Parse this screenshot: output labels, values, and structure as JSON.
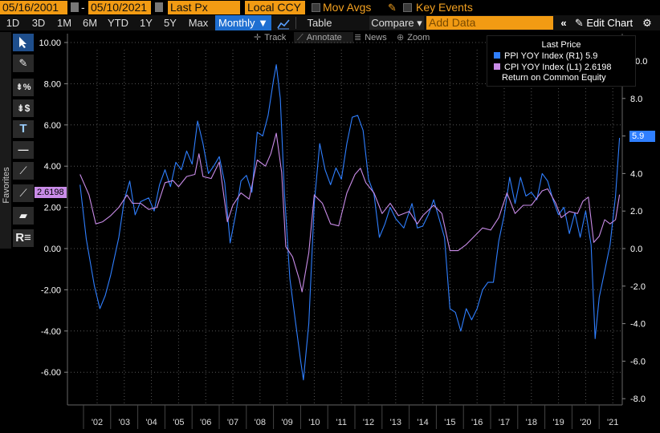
{
  "toolbar": {
    "start_date": "05/16/2001",
    "end_date": "05/10/2021",
    "price_field": "Last Px",
    "currency": "Local CCY",
    "mov_avgs": "Mov Avgs",
    "key_events": "Key Events"
  },
  "ranges": [
    "1D",
    "3D",
    "1M",
    "6M",
    "YTD",
    "1Y",
    "5Y",
    "Max"
  ],
  "frequency": "Monthly ▼",
  "table_label": "Table",
  "compare_label": "Compare ▾",
  "add_data_placeholder": "Add Data",
  "edit_chart": "Edit Chart",
  "sub_toolbar": [
    "Track",
    "Annotate",
    "News",
    "Zoom"
  ],
  "favorites_label": "Favorites",
  "legend": {
    "header": "Last Price",
    "ppi": "PPI YOY Index  (R1) 5.9",
    "cpi": "CPI YOY Index  (L1) 2.6198",
    "extra": "Return on Common Equity"
  },
  "tags": {
    "ppi": "5.9",
    "cpi": "2.6198"
  },
  "colors": {
    "ppi": "#2f7fff",
    "cpi": "#c98ce8",
    "accent": "#f29b13",
    "selected": "#1f6fd1"
  },
  "chart_data": {
    "type": "line",
    "x_ticks": [
      "'02",
      "'03",
      "'04",
      "'05",
      "'06",
      "'07",
      "'08",
      "'09",
      "'10",
      "'11",
      "'12",
      "'13",
      "'14",
      "'15",
      "'16",
      "'17",
      "'18",
      "'19",
      "'20",
      "'21"
    ],
    "left_axis": {
      "ticks": [
        "10.00",
        "8.00",
        "6.00",
        "4.00",
        "2.00",
        "0.00",
        "-2.00",
        "-4.00",
        "-6.00"
      ],
      "range": [
        -7.5,
        10.5
      ]
    },
    "right_axis": {
      "ticks": [
        "10.0",
        "8.0",
        "6.0",
        "4.0",
        "2.0",
        "0.0",
        "-2.0",
        "-4.0",
        "-6.0",
        "-8.0"
      ],
      "range": [
        -8.5,
        10.5
      ]
    },
    "series": [
      {
        "name": "PPI YOY Index",
        "axis": "right",
        "color": "#2f7fff",
        "points": [
          [
            2001.37,
            3.4
          ],
          [
            2001.6,
            0.5
          ],
          [
            2001.9,
            -2.0
          ],
          [
            2002.1,
            -3.2
          ],
          [
            2002.3,
            -2.5
          ],
          [
            2002.5,
            -1.4
          ],
          [
            2002.8,
            0.6
          ],
          [
            2003.0,
            2.6
          ],
          [
            2003.2,
            3.6
          ],
          [
            2003.4,
            1.8
          ],
          [
            2003.6,
            2.5
          ],
          [
            2003.9,
            2.7
          ],
          [
            2004.1,
            2.0
          ],
          [
            2004.3,
            3.4
          ],
          [
            2004.5,
            4.2
          ],
          [
            2004.7,
            3.3
          ],
          [
            2004.9,
            4.6
          ],
          [
            2005.1,
            4.2
          ],
          [
            2005.3,
            5.2
          ],
          [
            2005.5,
            4.5
          ],
          [
            2005.7,
            6.8
          ],
          [
            2005.9,
            5.6
          ],
          [
            2006.1,
            4.0
          ],
          [
            2006.3,
            4.4
          ],
          [
            2006.5,
            4.9
          ],
          [
            2006.7,
            3.5
          ],
          [
            2006.9,
            0.3
          ],
          [
            2007.1,
            1.8
          ],
          [
            2007.3,
            3.6
          ],
          [
            2007.5,
            3.9
          ],
          [
            2007.7,
            3.0
          ],
          [
            2007.9,
            6.2
          ],
          [
            2008.1,
            6.0
          ],
          [
            2008.3,
            7.1
          ],
          [
            2008.5,
            9.0
          ],
          [
            2008.6,
            9.8
          ],
          [
            2008.75,
            8.0
          ],
          [
            2008.9,
            3.0
          ],
          [
            2009.1,
            -1.6
          ],
          [
            2009.3,
            -3.8
          ],
          [
            2009.5,
            -6.0
          ],
          [
            2009.6,
            -7.0
          ],
          [
            2009.8,
            -4.0
          ],
          [
            2010.0,
            2.4
          ],
          [
            2010.2,
            5.6
          ],
          [
            2010.4,
            4.2
          ],
          [
            2010.6,
            3.4
          ],
          [
            2010.8,
            4.3
          ],
          [
            2011.0,
            3.7
          ],
          [
            2011.2,
            5.6
          ],
          [
            2011.4,
            7.0
          ],
          [
            2011.6,
            7.1
          ],
          [
            2011.8,
            6.3
          ],
          [
            2012.0,
            3.7
          ],
          [
            2012.2,
            2.9
          ],
          [
            2012.4,
            0.6
          ],
          [
            2012.6,
            1.3
          ],
          [
            2012.8,
            2.2
          ],
          [
            2013.0,
            1.6
          ],
          [
            2013.3,
            1.1
          ],
          [
            2013.6,
            2.4
          ],
          [
            2013.8,
            1.1
          ],
          [
            2014.0,
            1.2
          ],
          [
            2014.2,
            1.8
          ],
          [
            2014.4,
            2.6
          ],
          [
            2014.6,
            1.6
          ],
          [
            2014.8,
            0.6
          ],
          [
            2015.0,
            -3.2
          ],
          [
            2015.2,
            -3.4
          ],
          [
            2015.4,
            -4.4
          ],
          [
            2015.6,
            -3.2
          ],
          [
            2015.8,
            -3.8
          ],
          [
            2016.0,
            -3.2
          ],
          [
            2016.2,
            -2.2
          ],
          [
            2016.4,
            -1.8
          ],
          [
            2016.6,
            -1.8
          ],
          [
            2016.8,
            0.4
          ],
          [
            2017.0,
            1.8
          ],
          [
            2017.2,
            3.8
          ],
          [
            2017.4,
            2.4
          ],
          [
            2017.6,
            3.8
          ],
          [
            2017.8,
            2.8
          ],
          [
            2018.0,
            3.0
          ],
          [
            2018.2,
            2.6
          ],
          [
            2018.4,
            4.0
          ],
          [
            2018.6,
            3.6
          ],
          [
            2018.8,
            2.6
          ],
          [
            2019.0,
            1.8
          ],
          [
            2019.2,
            2.2
          ],
          [
            2019.4,
            0.8
          ],
          [
            2019.6,
            1.9
          ],
          [
            2019.8,
            0.6
          ],
          [
            2020.0,
            2.0
          ],
          [
            2020.2,
            0.2
          ],
          [
            2020.35,
            -4.8
          ],
          [
            2020.5,
            -2.6
          ],
          [
            2020.7,
            -1.2
          ],
          [
            2020.9,
            0.2
          ],
          [
            2021.1,
            2.8
          ],
          [
            2021.25,
            5.9
          ]
        ]
      },
      {
        "name": "CPI YOY Index",
        "axis": "left",
        "color": "#c98ce8",
        "points": [
          [
            2001.37,
            3.6
          ],
          [
            2001.7,
            2.6
          ],
          [
            2001.95,
            1.2
          ],
          [
            2002.2,
            1.3
          ],
          [
            2002.5,
            1.6
          ],
          [
            2002.8,
            2.0
          ],
          [
            2003.1,
            2.6
          ],
          [
            2003.3,
            2.2
          ],
          [
            2003.6,
            2.2
          ],
          [
            2003.9,
            1.9
          ],
          [
            2004.2,
            2.0
          ],
          [
            2004.5,
            3.2
          ],
          [
            2004.8,
            3.3
          ],
          [
            2005.0,
            3.0
          ],
          [
            2005.3,
            3.5
          ],
          [
            2005.6,
            3.6
          ],
          [
            2005.75,
            4.6
          ],
          [
            2005.9,
            3.5
          ],
          [
            2006.2,
            3.4
          ],
          [
            2006.5,
            4.2
          ],
          [
            2006.8,
            1.3
          ],
          [
            2007.0,
            2.1
          ],
          [
            2007.3,
            2.7
          ],
          [
            2007.6,
            2.4
          ],
          [
            2007.9,
            4.3
          ],
          [
            2008.2,
            4.0
          ],
          [
            2008.4,
            4.6
          ],
          [
            2008.6,
            5.6
          ],
          [
            2008.8,
            3.7
          ],
          [
            2008.95,
            0.1
          ],
          [
            2009.2,
            -0.4
          ],
          [
            2009.45,
            -1.5
          ],
          [
            2009.55,
            -2.1
          ],
          [
            2009.8,
            -0.2
          ],
          [
            2010.0,
            2.6
          ],
          [
            2010.3,
            2.2
          ],
          [
            2010.6,
            1.2
          ],
          [
            2010.9,
            1.1
          ],
          [
            2011.2,
            2.7
          ],
          [
            2011.5,
            3.6
          ],
          [
            2011.7,
            3.9
          ],
          [
            2011.9,
            3.2
          ],
          [
            2012.2,
            2.7
          ],
          [
            2012.5,
            1.7
          ],
          [
            2012.8,
            2.2
          ],
          [
            2013.1,
            1.6
          ],
          [
            2013.5,
            1.8
          ],
          [
            2013.8,
            1.2
          ],
          [
            2014.0,
            1.6
          ],
          [
            2014.4,
            2.1
          ],
          [
            2014.7,
            1.7
          ],
          [
            2015.0,
            -0.1
          ],
          [
            2015.3,
            -0.1
          ],
          [
            2015.6,
            0.2
          ],
          [
            2015.9,
            0.6
          ],
          [
            2016.2,
            1.0
          ],
          [
            2016.5,
            0.9
          ],
          [
            2016.8,
            1.5
          ],
          [
            2017.1,
            2.7
          ],
          [
            2017.4,
            1.7
          ],
          [
            2017.7,
            2.1
          ],
          [
            2018.0,
            2.1
          ],
          [
            2018.4,
            2.8
          ],
          [
            2018.6,
            2.9
          ],
          [
            2018.9,
            2.2
          ],
          [
            2019.1,
            1.5
          ],
          [
            2019.4,
            1.8
          ],
          [
            2019.7,
            1.7
          ],
          [
            2019.9,
            2.3
          ],
          [
            2020.1,
            2.5
          ],
          [
            2020.3,
            0.3
          ],
          [
            2020.5,
            0.6
          ],
          [
            2020.7,
            1.4
          ],
          [
            2020.9,
            1.2
          ],
          [
            2021.1,
            1.4
          ],
          [
            2021.25,
            2.6198
          ]
        ]
      }
    ]
  }
}
